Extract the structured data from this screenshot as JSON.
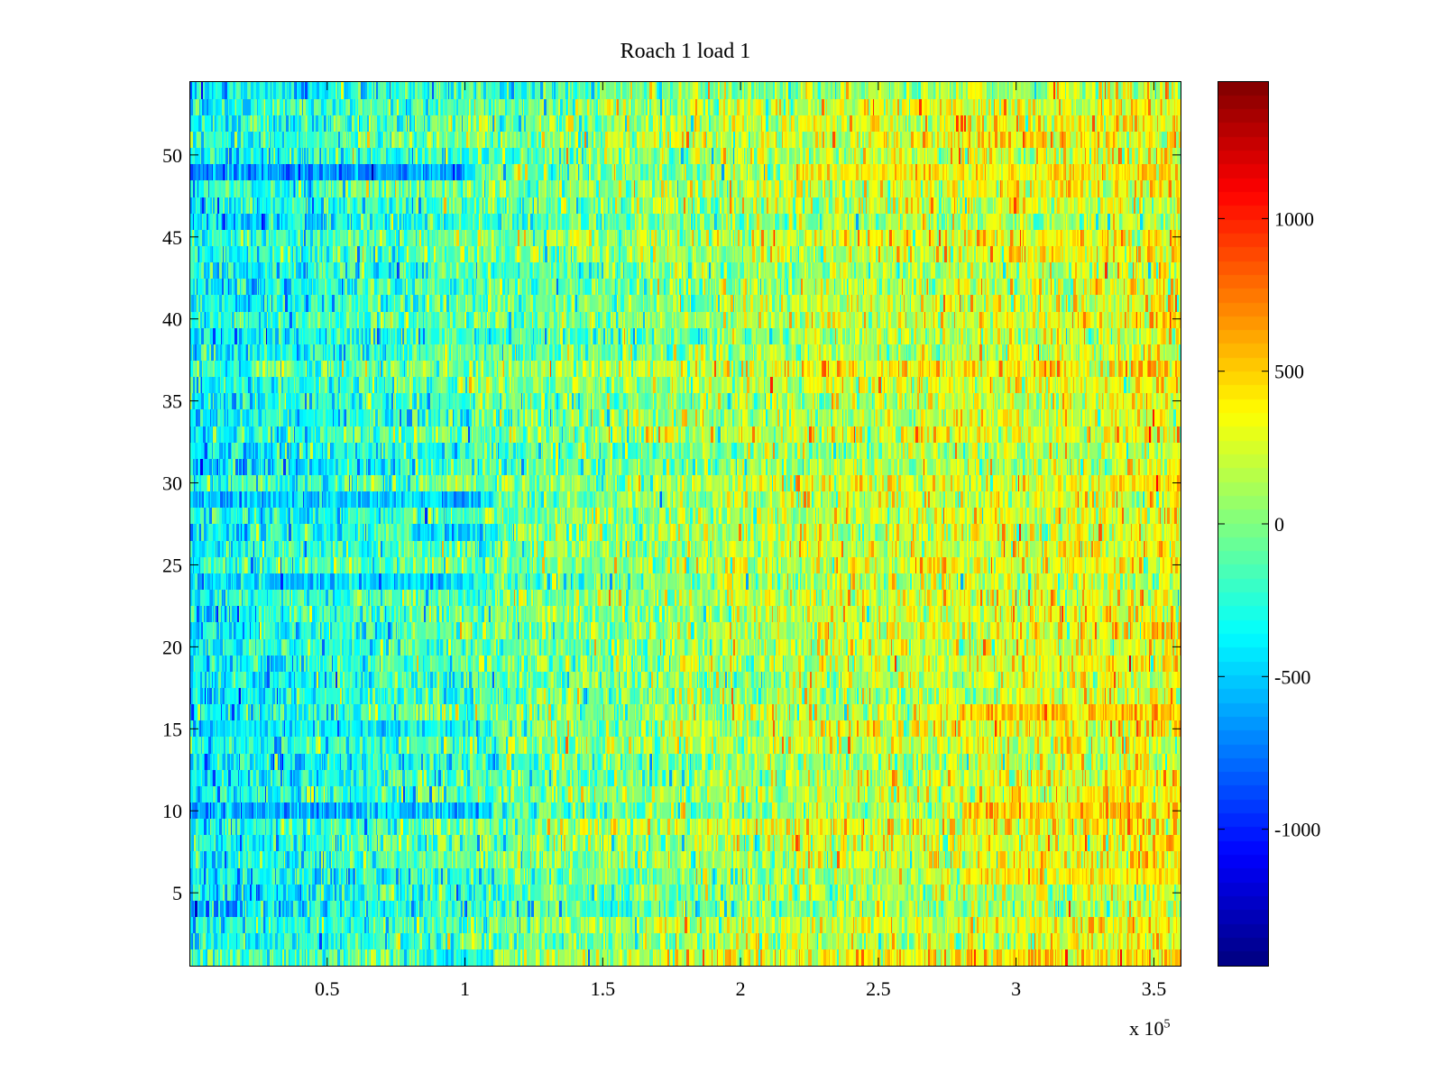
{
  "chart_data": {
    "type": "heatmap",
    "title": "Roach 1 load 1",
    "xlabel": "",
    "ylabel": "",
    "x_exponent_label": "x 10",
    "x_exponent_power": "5",
    "xlim": [
      0,
      3.6
    ],
    "ylim": [
      0.5,
      54.5
    ],
    "x_ticks": [
      0.5,
      1,
      1.5,
      2,
      2.5,
      3,
      3.5
    ],
    "x_tick_labels": [
      "0.5",
      "1",
      "1.5",
      "2",
      "2.5",
      "3",
      "3.5"
    ],
    "y_ticks": [
      5,
      10,
      15,
      20,
      25,
      30,
      35,
      40,
      45,
      50
    ],
    "y_tick_labels": [
      "5",
      "10",
      "15",
      "20",
      "25",
      "30",
      "35",
      "40",
      "45",
      "50"
    ],
    "rows": 54,
    "colormap": "jet",
    "clim": [
      -1450,
      1450
    ],
    "colorbar_ticks": [
      1000,
      500,
      0,
      -500,
      -1000
    ],
    "colorbar_tick_labels": [
      "1000",
      "500",
      "0",
      "-500",
      "-1000"
    ],
    "grid": false,
    "trend": {
      "x_breakpoints": [
        0,
        1.1,
        2.3,
        3.6
      ],
      "mean_values": [
        -380,
        -80,
        180,
        320
      ],
      "noise_std": 230
    },
    "low_value_bands": [
      {
        "row": 49,
        "x_start": 0,
        "x_end": 1.03,
        "value": -900
      },
      {
        "row": 29,
        "x_start": 0,
        "x_end": 1.1,
        "value": -650
      },
      {
        "row": 10,
        "x_start": 0,
        "x_end": 1.1,
        "value": -700
      },
      {
        "row": 24,
        "x_start": 0,
        "x_end": 1.1,
        "value": -550
      },
      {
        "row": 15,
        "x_start": 0,
        "x_end": 1.1,
        "value": -500
      },
      {
        "row": 27,
        "x_start": 0.8,
        "x_end": 1.1,
        "value": -650
      },
      {
        "row": 1,
        "x_start": 0.8,
        "x_end": 1.1,
        "value": -550
      }
    ],
    "high_value_bands": [
      {
        "row": 10,
        "x_start": 2.8,
        "x_end": 3.6,
        "value": 650
      },
      {
        "row": 16,
        "x_start": 2.8,
        "x_end": 3.6,
        "value": 650
      },
      {
        "row": 49,
        "x_start": 2.2,
        "x_end": 3.6,
        "value": 500
      },
      {
        "row": 6,
        "x_start": 2.8,
        "x_end": 3.6,
        "value": 500
      }
    ]
  }
}
